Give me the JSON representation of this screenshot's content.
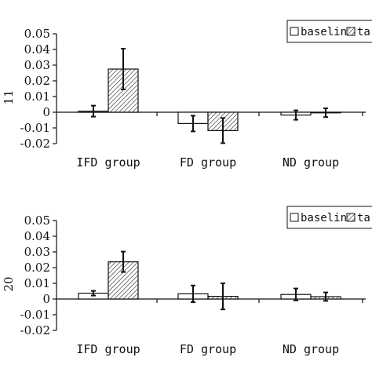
{
  "chart_data": [
    {
      "type": "bar",
      "ylabel": "11",
      "ylim": [
        -0.02,
        0.05
      ],
      "yticks": [
        "0.05",
        "0.04",
        "0.03",
        "0.02",
        "0.01",
        "0",
        "-0.01",
        "-0.02"
      ],
      "categories": [
        "IFD group",
        "FD group",
        "ND group"
      ],
      "legend": {
        "placement": "top-right",
        "entries": [
          "baseline",
          "ta"
        ]
      },
      "series": [
        {
          "name": "baseline",
          "values": [
            0.0007,
            -0.0072,
            -0.0018
          ],
          "errors": [
            0.0035,
            0.005,
            0.003
          ]
        },
        {
          "name": "ta",
          "values": [
            0.0275,
            -0.0117,
            -0.0003
          ],
          "errors": [
            0.013,
            0.008,
            0.0028
          ]
        }
      ]
    },
    {
      "type": "bar",
      "ylabel": "20",
      "ylim": [
        -0.02,
        0.05
      ],
      "yticks": [
        "0.05",
        "0.04",
        "0.03",
        "0.02",
        "0.01",
        "0",
        "-0.01",
        "-0.02"
      ],
      "categories": [
        "IFD group",
        "FD group",
        "ND group"
      ],
      "legend": {
        "placement": "top-right",
        "entries": [
          "baseline",
          "ta"
        ]
      },
      "series": [
        {
          "name": "baseline",
          "values": [
            0.0037,
            0.0033,
            0.0029
          ],
          "errors": [
            0.0015,
            0.0053,
            0.0038
          ]
        },
        {
          "name": "ta",
          "values": [
            0.0237,
            0.0017,
            0.0015
          ],
          "errors": [
            0.0065,
            0.0083,
            0.0027
          ]
        }
      ]
    }
  ]
}
